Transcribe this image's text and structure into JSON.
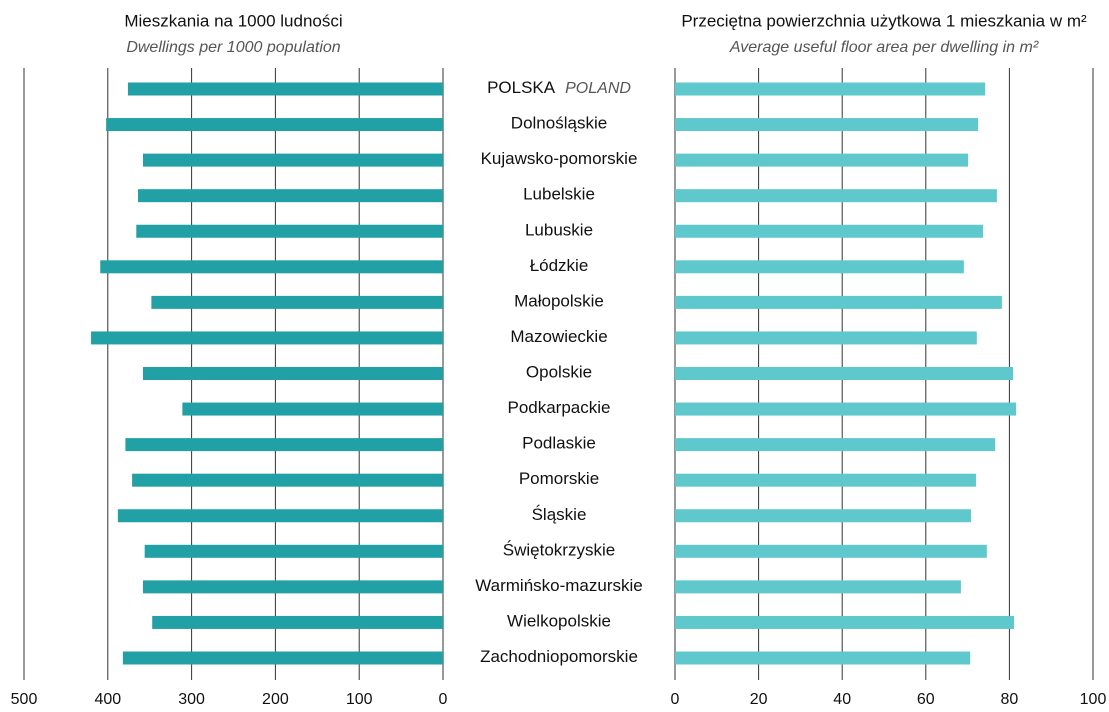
{
  "chart_data": [
    {
      "type": "bar",
      "orientation": "horizontal",
      "title": "Mieszkania na 1000 ludności",
      "subtitle": "Dwellings per 1000 population",
      "categories": [
        "POLSKA",
        "Dolnośląskie",
        "Kujawsko-pomorskie",
        "Lubelskie",
        "Lubuskie",
        "Łódzkie",
        "Małopolskie",
        "Mazowieckie",
        "Opolskie",
        "Podkarpackie",
        "Podlaskie",
        "Pomorskie",
        "Śląskie",
        "Świętokrzyskie",
        "Warmińsko-mazurskie",
        "Wielkopolskie",
        "Zachodniopomorskie"
      ],
      "annotations": [
        {
          "category": 0,
          "text": "POLAND"
        }
      ],
      "values": [
        376,
        402,
        358,
        364,
        366,
        409,
        348,
        420,
        358,
        311,
        379,
        371,
        388,
        356,
        358,
        347,
        382
      ],
      "color": "#21a0a5",
      "xlim": [
        500,
        0
      ],
      "xticks": [
        500,
        400,
        300,
        200,
        100,
        0
      ],
      "grid": true
    },
    {
      "type": "bar",
      "orientation": "horizontal",
      "title": "Przeciętna powierzchnia użytkowa 1 mieszkania w m²",
      "subtitle": "Average useful floor area per dwelling in m²",
      "values": [
        74.2,
        72.5,
        70.1,
        77.0,
        73.7,
        69.1,
        78.2,
        72.2,
        80.9,
        81.6,
        76.6,
        72.0,
        70.8,
        74.6,
        68.4,
        81.1,
        70.6
      ],
      "color": "#5ec8cc",
      "xlim": [
        0,
        100
      ],
      "xticks": [
        0,
        20,
        40,
        60,
        80,
        100
      ],
      "grid": true
    }
  ]
}
